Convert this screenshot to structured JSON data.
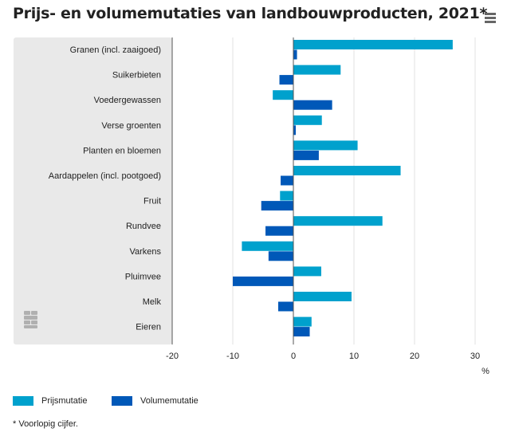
{
  "title": "Prijs- en volumemutaties van landbouwproducten, 2021*",
  "menu": {
    "icon": "hamburger-menu-icon"
  },
  "logo": {
    "text": "cbs",
    "icon": "cbs-logo-icon"
  },
  "footnote": "* Voorlopig cijfer.",
  "colors": {
    "prijs": "#00a1cd",
    "volume": "#0058b8",
    "plot_bg": "#e9e9e9",
    "grid": "#e0e0e0",
    "axis": "#555555"
  },
  "chart_data": {
    "type": "bar",
    "orientation": "horizontal",
    "categories": [
      "Granen (incl. zaaigoed)",
      "Suikerbieten",
      "Voedergewassen",
      "Verse groenten",
      "Planten en bloemen",
      "Aardappelen (incl. pootgoed)",
      "Fruit",
      "Rundvee",
      "Varkens",
      "Pluimvee",
      "Melk",
      "Eieren"
    ],
    "series": [
      {
        "name": "Prijsmutatie",
        "color": "#00a1cd",
        "values": [
          26.3,
          7.8,
          -3.4,
          4.7,
          10.6,
          17.7,
          -2.2,
          14.7,
          -8.5,
          4.6,
          9.6,
          3.0
        ]
      },
      {
        "name": "Volumemutatie",
        "color": "#0058b8",
        "values": [
          0.6,
          -2.3,
          6.4,
          0.4,
          4.2,
          -2.1,
          -5.3,
          -4.6,
          -4.1,
          -10.0,
          -2.5,
          2.7
        ]
      }
    ],
    "xlim": [
      -20,
      30
    ],
    "xticks": [
      "-20",
      "-10",
      "0",
      "10",
      "20",
      "30"
    ],
    "xunit": "%",
    "grid": true,
    "legend_position": "bottom-left"
  }
}
